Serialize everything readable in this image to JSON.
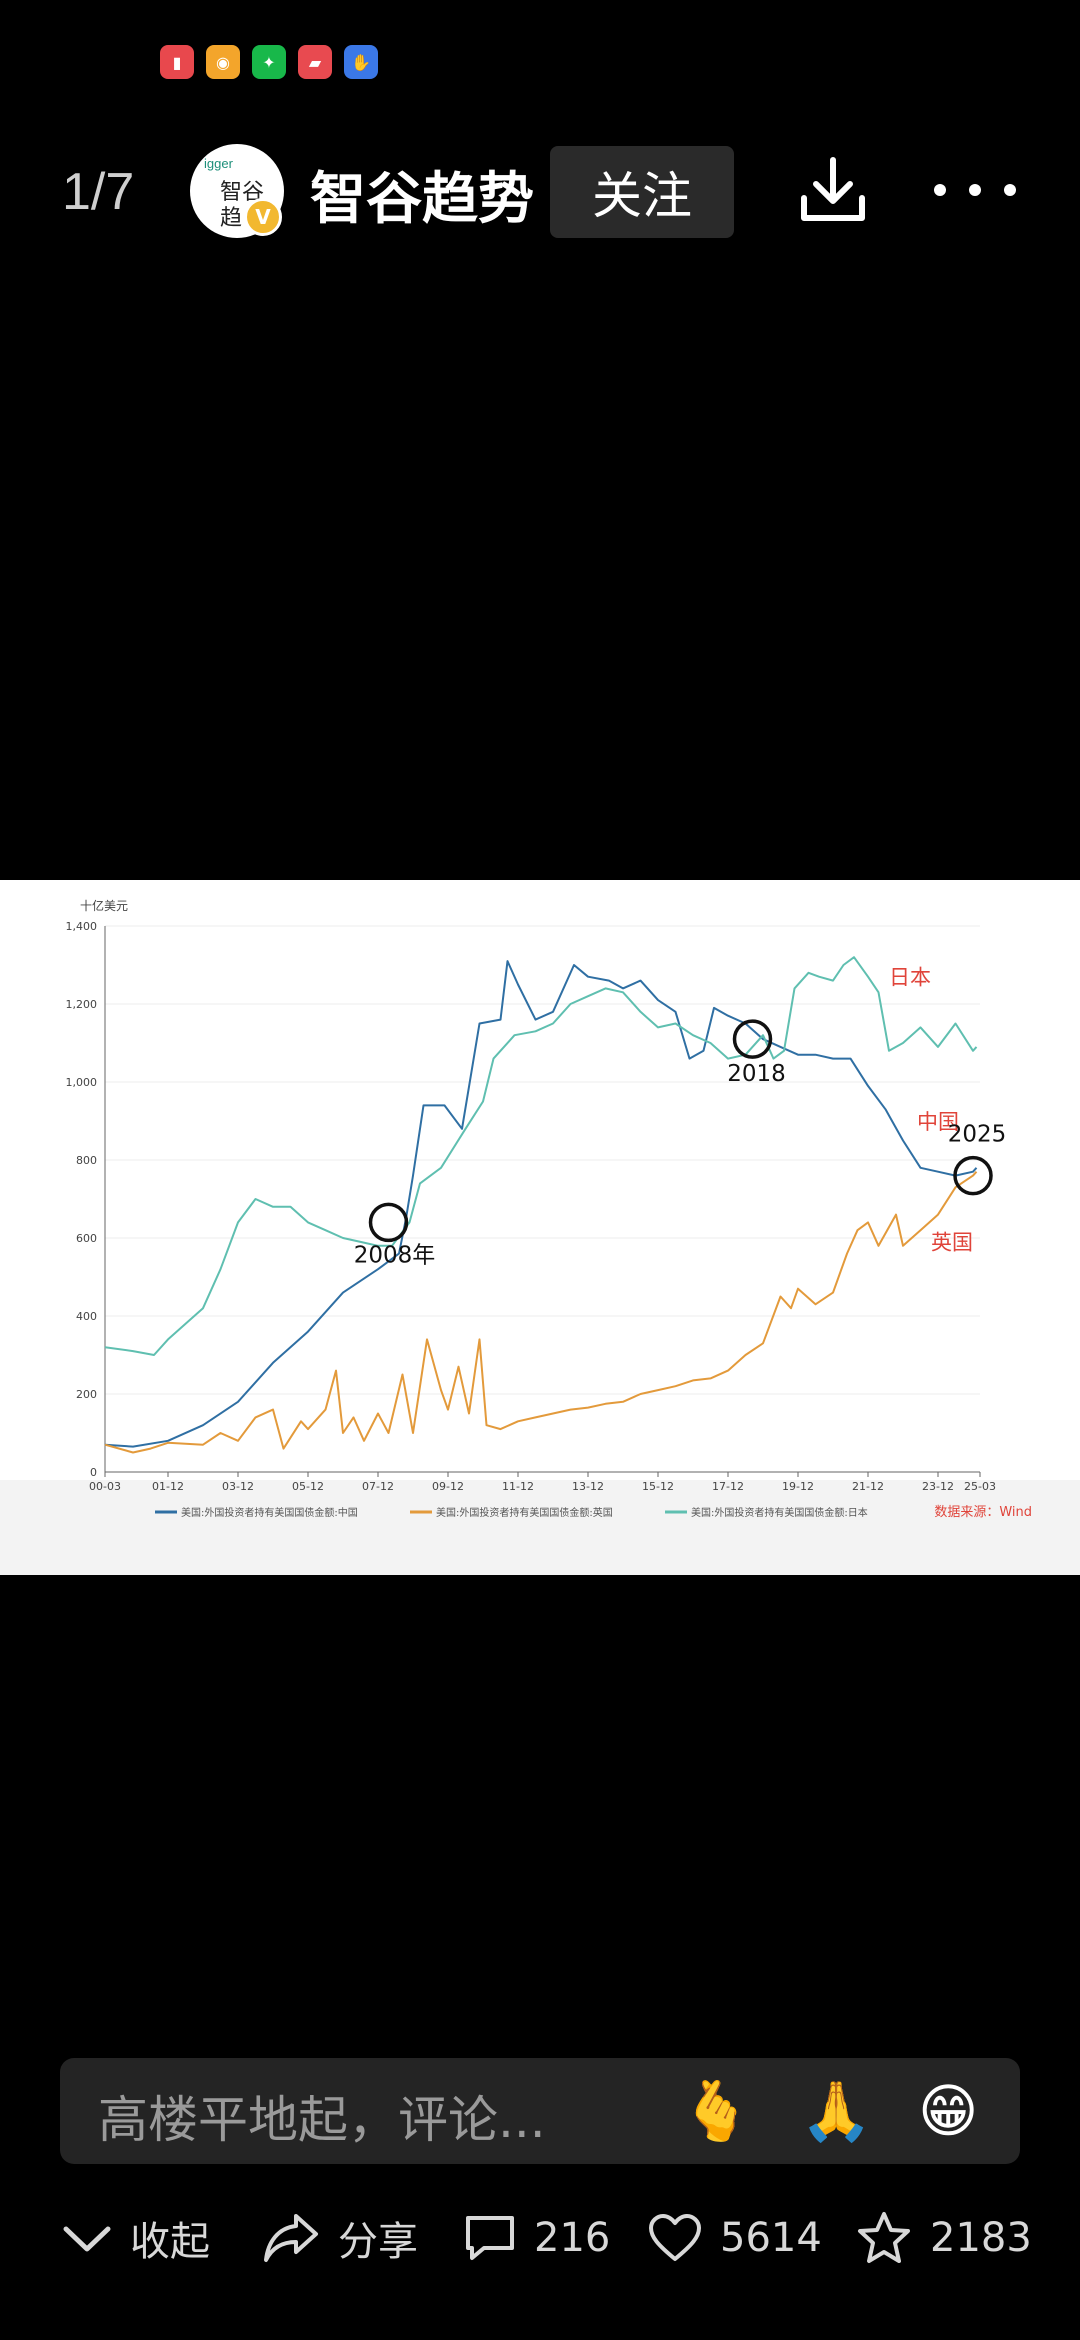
{
  "notification_icons": [
    {
      "name": "books-app-icon",
      "color": "#e8484d",
      "glyph": "▮"
    },
    {
      "name": "weibo-icon",
      "color": "#f3a52b",
      "glyph": "◉"
    },
    {
      "name": "wechat-icon",
      "color": "#18b84a",
      "glyph": "✦"
    },
    {
      "name": "huawei-store-icon",
      "color": "#e84a50",
      "glyph": "▰"
    },
    {
      "name": "assistant-icon",
      "color": "#3b78e7",
      "glyph": "✋"
    }
  ],
  "header": {
    "counter": "1/7",
    "avatar_text_en": "igger",
    "avatar_text_line1": "智谷",
    "avatar_text_line2": "趋",
    "verified_badge": "V",
    "author_name": "智谷趋势",
    "follow_label": "关注"
  },
  "chart_data": {
    "type": "line",
    "unit_label": "十亿美元",
    "ylim": [
      0,
      1400
    ],
    "yticks": [
      "0",
      "200",
      "400",
      "600",
      "800",
      "1,000",
      "1,200",
      "1,400"
    ],
    "xticks": [
      "00-03",
      "01-12",
      "03-12",
      "05-12",
      "07-12",
      "09-12",
      "11-12",
      "13-12",
      "15-12",
      "17-12",
      "19-12",
      "21-12",
      "23-12",
      "25-03"
    ],
    "grid": true,
    "legend_position": "bottom",
    "source_text": "数据来源：Wind",
    "series": [
      {
        "name": "美国:外国投资者持有美国国债金额:中国",
        "color": "#2f6fa3",
        "label": "中国",
        "points": [
          [
            2000.2,
            70
          ],
          [
            2001,
            65
          ],
          [
            2002,
            80
          ],
          [
            2003,
            120
          ],
          [
            2004,
            180
          ],
          [
            2005,
            280
          ],
          [
            2006,
            360
          ],
          [
            2007,
            460
          ],
          [
            2008,
            520
          ],
          [
            2008.6,
            560
          ],
          [
            2008.8,
            650
          ],
          [
            2009,
            760
          ],
          [
            2009.3,
            940
          ],
          [
            2009.9,
            940
          ],
          [
            2010.4,
            880
          ],
          [
            2010.9,
            1150
          ],
          [
            2011.5,
            1160
          ],
          [
            2011.7,
            1310
          ],
          [
            2012,
            1250
          ],
          [
            2012.5,
            1160
          ],
          [
            2013,
            1180
          ],
          [
            2013.6,
            1300
          ],
          [
            2014,
            1270
          ],
          [
            2014.6,
            1260
          ],
          [
            2015,
            1240
          ],
          [
            2015.5,
            1260
          ],
          [
            2016,
            1210
          ],
          [
            2016.5,
            1180
          ],
          [
            2016.9,
            1060
          ],
          [
            2017.3,
            1080
          ],
          [
            2017.6,
            1190
          ],
          [
            2018,
            1170
          ],
          [
            2018.5,
            1150
          ],
          [
            2019,
            1110
          ],
          [
            2019.5,
            1090
          ],
          [
            2020,
            1070
          ],
          [
            2020.5,
            1070
          ],
          [
            2021,
            1060
          ],
          [
            2021.5,
            1060
          ],
          [
            2022,
            990
          ],
          [
            2022.5,
            930
          ],
          [
            2023,
            850
          ],
          [
            2023.5,
            780
          ],
          [
            2024,
            770
          ],
          [
            2024.5,
            760
          ],
          [
            2025,
            770
          ],
          [
            2025.1,
            780
          ]
        ]
      },
      {
        "name": "美国:外国投资者持有美国国债金额:英国",
        "color": "#e39a3b",
        "label": "英国",
        "points": [
          [
            2000.2,
            70
          ],
          [
            2000.8,
            55
          ],
          [
            2001,
            50
          ],
          [
            2001.5,
            60
          ],
          [
            2002,
            75
          ],
          [
            2003,
            70
          ],
          [
            2003.5,
            100
          ],
          [
            2004,
            80
          ],
          [
            2004.5,
            140
          ],
          [
            2005,
            160
          ],
          [
            2005.3,
            60
          ],
          [
            2005.8,
            130
          ],
          [
            2006,
            110
          ],
          [
            2006.5,
            160
          ],
          [
            2006.8,
            260
          ],
          [
            2007,
            100
          ],
          [
            2007.3,
            140
          ],
          [
            2007.6,
            80
          ],
          [
            2008,
            150
          ],
          [
            2008.3,
            100
          ],
          [
            2008.7,
            250
          ],
          [
            2009,
            100
          ],
          [
            2009.4,
            340
          ],
          [
            2009.8,
            210
          ],
          [
            2010,
            160
          ],
          [
            2010.3,
            270
          ],
          [
            2010.6,
            150
          ],
          [
            2010.9,
            340
          ],
          [
            2011.1,
            120
          ],
          [
            2011.5,
            110
          ],
          [
            2012,
            130
          ],
          [
            2012.5,
            140
          ],
          [
            2013,
            150
          ],
          [
            2013.5,
            160
          ],
          [
            2014,
            165
          ],
          [
            2014.5,
            175
          ],
          [
            2015,
            180
          ],
          [
            2015.5,
            200
          ],
          [
            2016,
            210
          ],
          [
            2016.5,
            220
          ],
          [
            2017,
            235
          ],
          [
            2017.5,
            240
          ],
          [
            2018,
            260
          ],
          [
            2018.5,
            300
          ],
          [
            2019,
            330
          ],
          [
            2019.5,
            450
          ],
          [
            2019.8,
            420
          ],
          [
            2020,
            470
          ],
          [
            2020.5,
            430
          ],
          [
            2021,
            460
          ],
          [
            2021.4,
            560
          ],
          [
            2021.7,
            620
          ],
          [
            2022,
            640
          ],
          [
            2022.3,
            580
          ],
          [
            2022.8,
            660
          ],
          [
            2023,
            580
          ],
          [
            2023.5,
            620
          ],
          [
            2024,
            660
          ],
          [
            2024.5,
            730
          ],
          [
            2025,
            760
          ],
          [
            2025.1,
            770
          ]
        ]
      },
      {
        "name": "美国:外国投资者持有美国国债金额:日本",
        "color": "#5fbfb0",
        "label": "日本",
        "points": [
          [
            2000.2,
            320
          ],
          [
            2001,
            310
          ],
          [
            2001.6,
            300
          ],
          [
            2002,
            340
          ],
          [
            2003,
            420
          ],
          [
            2003.5,
            520
          ],
          [
            2004,
            640
          ],
          [
            2004.5,
            700
          ],
          [
            2005,
            680
          ],
          [
            2005.5,
            680
          ],
          [
            2006,
            640
          ],
          [
            2006.5,
            620
          ],
          [
            2007,
            600
          ],
          [
            2007.5,
            590
          ],
          [
            2008,
            580
          ],
          [
            2008.4,
            580
          ],
          [
            2008.9,
            640
          ],
          [
            2009.2,
            740
          ],
          [
            2009.8,
            780
          ],
          [
            2010.5,
            880
          ],
          [
            2011,
            950
          ],
          [
            2011.3,
            1060
          ],
          [
            2011.9,
            1120
          ],
          [
            2012.5,
            1130
          ],
          [
            2013,
            1150
          ],
          [
            2013.5,
            1200
          ],
          [
            2014,
            1220
          ],
          [
            2014.5,
            1240
          ],
          [
            2015,
            1230
          ],
          [
            2015.5,
            1180
          ],
          [
            2016,
            1140
          ],
          [
            2016.5,
            1150
          ],
          [
            2017,
            1120
          ],
          [
            2017.5,
            1100
          ],
          [
            2018,
            1060
          ],
          [
            2018.5,
            1070
          ],
          [
            2019,
            1120
          ],
          [
            2019.3,
            1060
          ],
          [
            2019.6,
            1080
          ],
          [
            2019.9,
            1240
          ],
          [
            2020.3,
            1280
          ],
          [
            2020.6,
            1270
          ],
          [
            2021,
            1260
          ],
          [
            2021.3,
            1300
          ],
          [
            2021.6,
            1320
          ],
          [
            2022,
            1270
          ],
          [
            2022.3,
            1230
          ],
          [
            2022.6,
            1080
          ],
          [
            2023,
            1100
          ],
          [
            2023.5,
            1140
          ],
          [
            2024,
            1090
          ],
          [
            2024.5,
            1150
          ],
          [
            2025,
            1080
          ],
          [
            2025.1,
            1090
          ]
        ]
      }
    ],
    "annotations": [
      {
        "label": "2008年",
        "x": 2008.3,
        "y": 640
      },
      {
        "label": "2018",
        "x": 2018.7,
        "y": 1110
      },
      {
        "label": "2025",
        "x": 2025.0,
        "y": 760
      }
    ],
    "series_labels_color": "#e0443a"
  },
  "comment": {
    "placeholder": "高楼平地起，评论...",
    "emojis": [
      "🫰",
      "🙏",
      "😁"
    ]
  },
  "actions": {
    "collapse_label": "收起",
    "share_label": "分享",
    "comment_count": "216",
    "like_count": "5614",
    "favorite_count": "2183"
  }
}
